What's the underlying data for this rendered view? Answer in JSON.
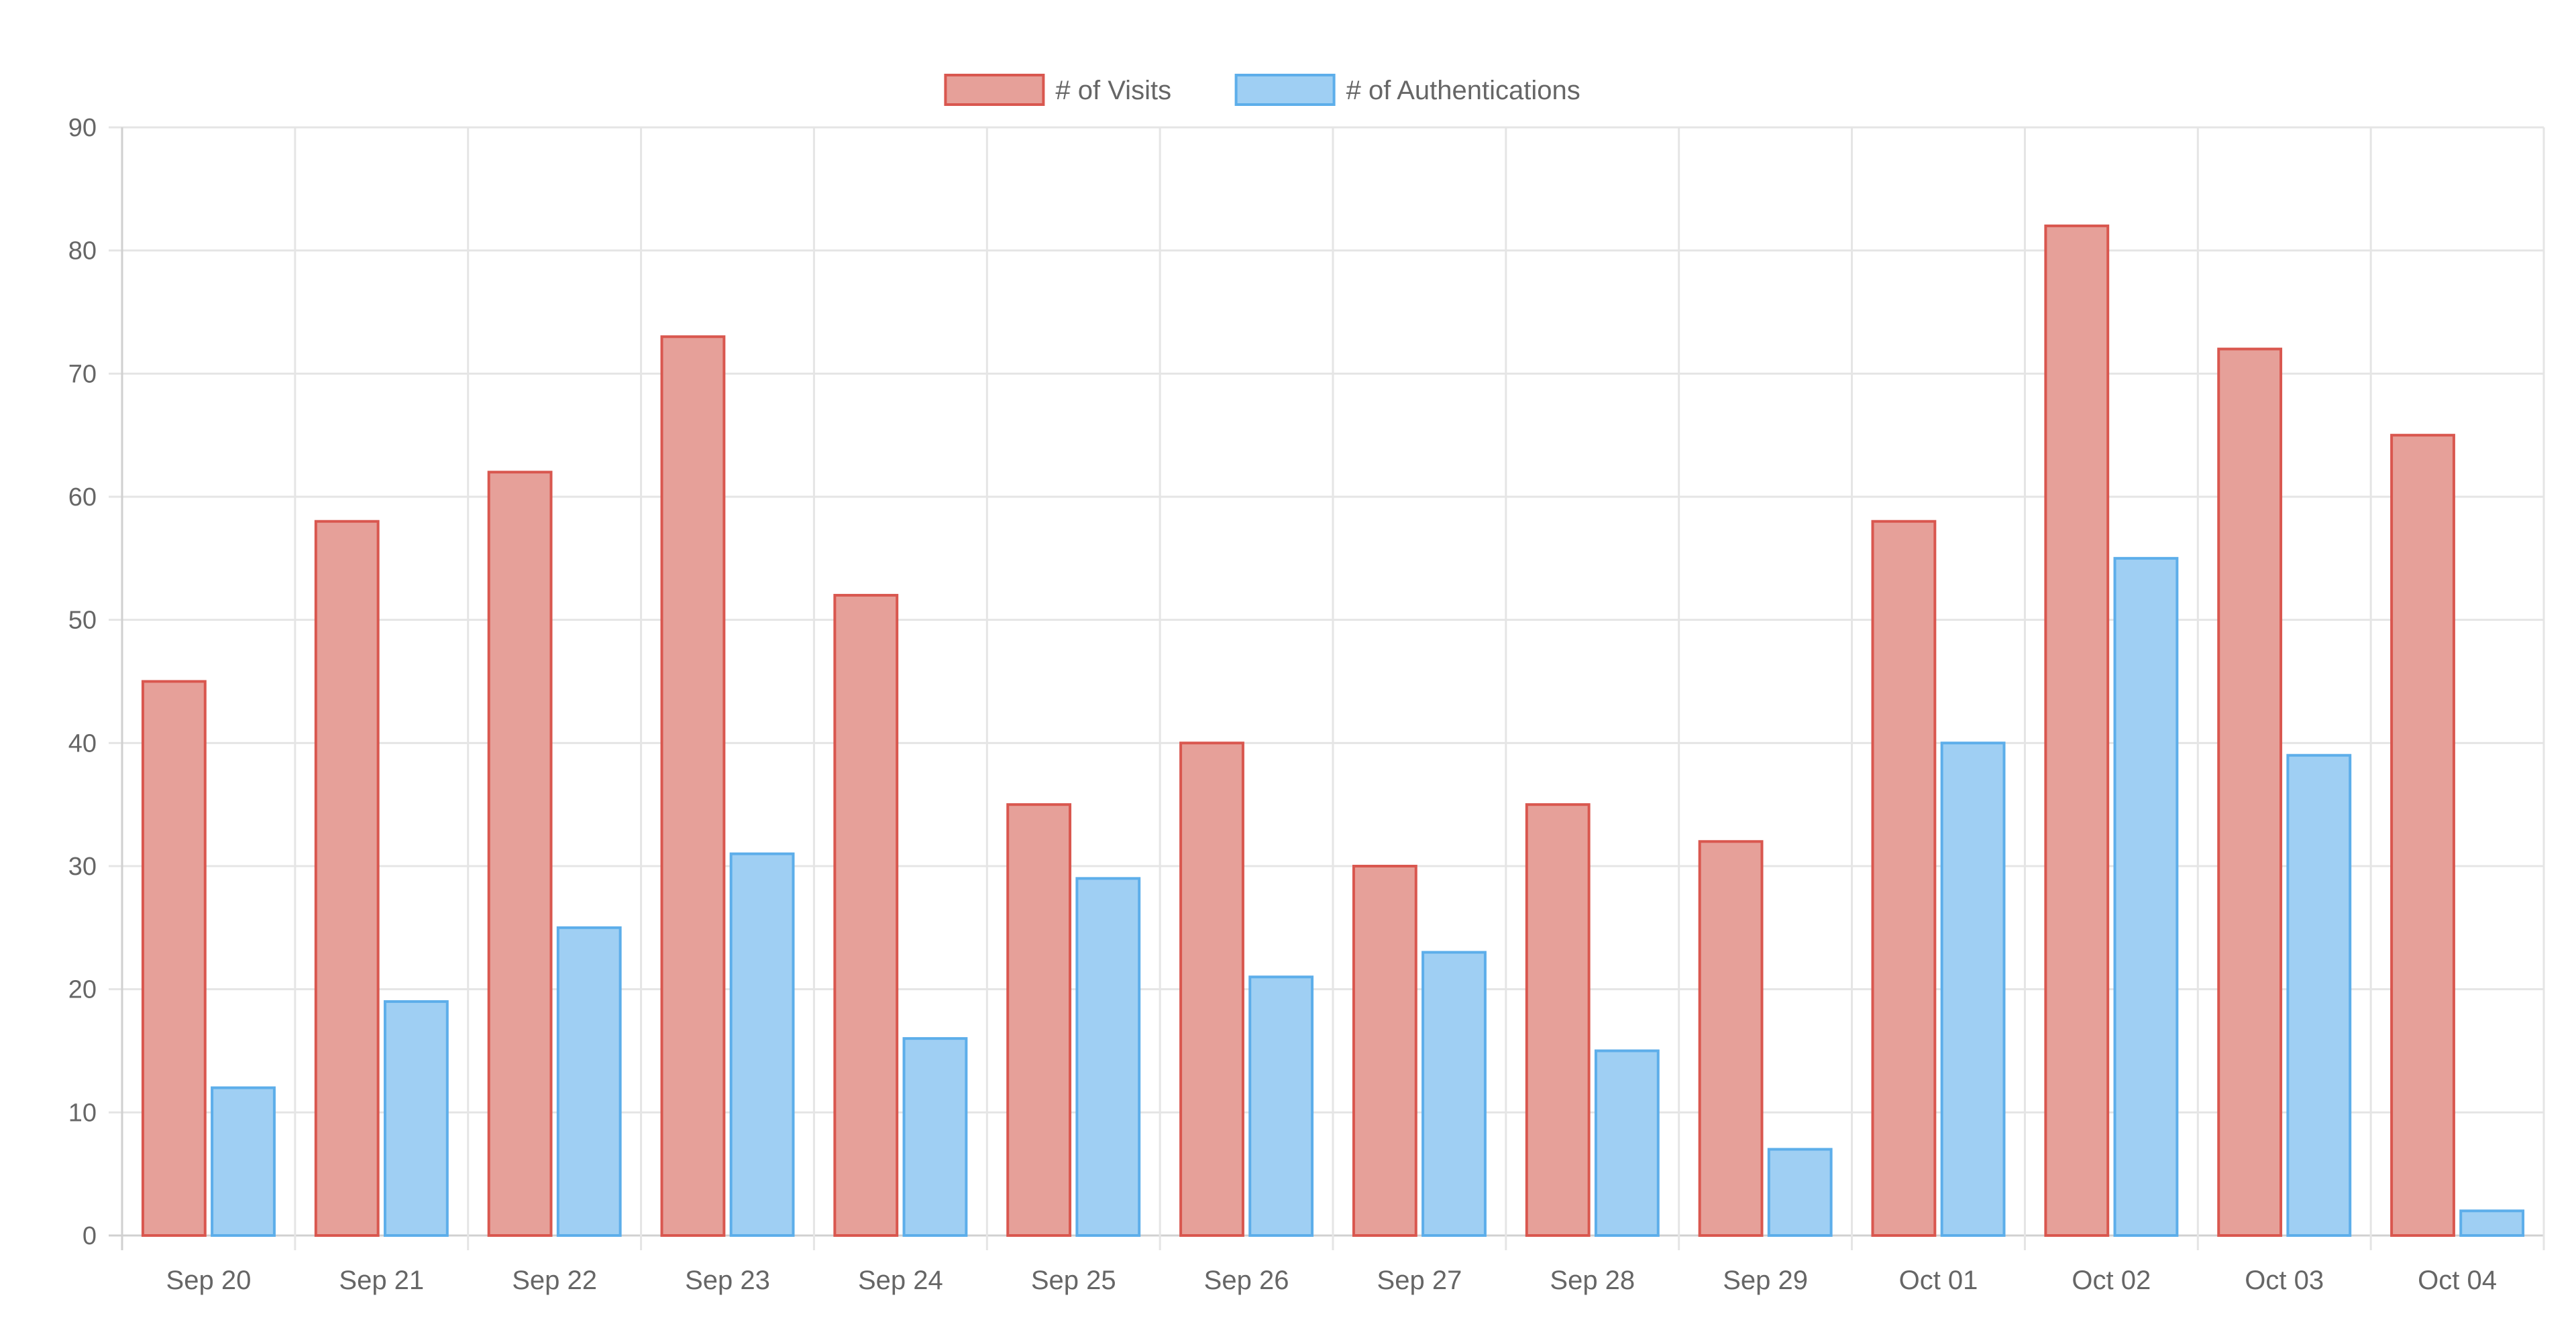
{
  "chart_data": {
    "type": "bar",
    "title": "",
    "xlabel": "",
    "ylabel": "",
    "categories": [
      "Sep 20",
      "Sep 21",
      "Sep 22",
      "Sep 23",
      "Sep 24",
      "Sep 25",
      "Sep 26",
      "Sep 27",
      "Sep 28",
      "Sep 29",
      "Oct 01",
      "Oct 02",
      "Oct 03",
      "Oct 04"
    ],
    "series": [
      {
        "name": "# of Visits",
        "values": [
          45,
          58,
          62,
          73,
          52,
          35,
          40,
          30,
          35,
          32,
          58,
          82,
          72,
          65
        ],
        "fill": "#e6a099",
        "stroke": "#d9574f"
      },
      {
        "name": "# of Authentications",
        "values": [
          12,
          19,
          25,
          31,
          16,
          29,
          21,
          23,
          15,
          7,
          40,
          55,
          39,
          2
        ],
        "fill": "#9fcff3",
        "stroke": "#5daeea"
      }
    ],
    "ylim": [
      0,
      90
    ],
    "yticks": [
      0,
      10,
      20,
      30,
      40,
      50,
      60,
      70,
      80,
      90
    ],
    "ytick_labels": [
      "0",
      "10",
      "20",
      "30",
      "40",
      "50",
      "60",
      "70",
      "80",
      "90"
    ],
    "grid": true,
    "legend_position": "top-center"
  },
  "colors": {
    "grid": "#e5e5e5",
    "axis": "#d0d0d0",
    "tick_text": "#666666",
    "legend_text": "#666666"
  }
}
